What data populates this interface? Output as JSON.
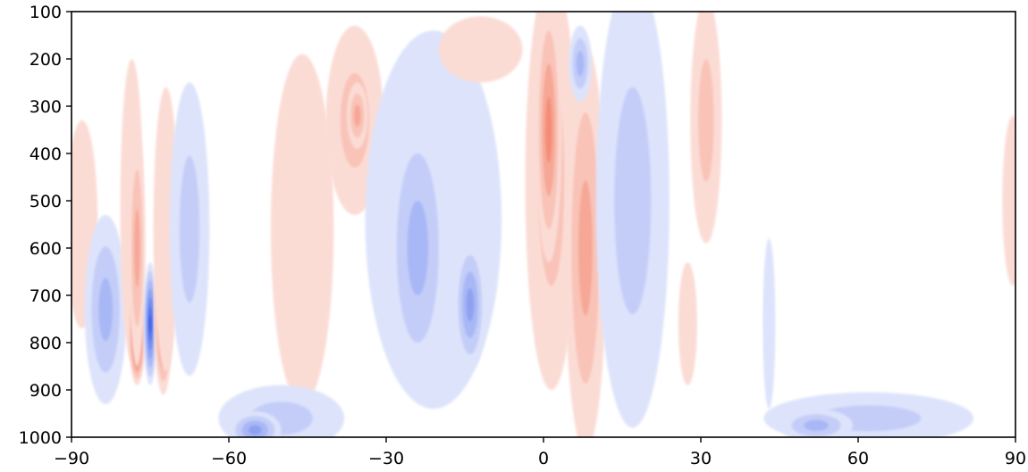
{
  "chart_data": {
    "type": "heatmap",
    "title": "",
    "xlabel": "",
    "ylabel": "",
    "xlim": [
      -90,
      90
    ],
    "ylim": [
      1000,
      100
    ],
    "y_inverted": true,
    "grid": false,
    "colormap": "diverging blue-white-red",
    "colors": {
      "neg": [
        "#dde3fb",
        "#c3cdf8",
        "#a8b7f5",
        "#8ea1f1",
        "#7189ef",
        "#5472ec",
        "#3258e8",
        "#0b3ce6"
      ],
      "pos": [
        "#fbdcd5",
        "#f9c3b8",
        "#f6a795",
        "#f48c75",
        "#f27358",
        "#ef5a3e",
        "#ed4124",
        "#ea2a0c"
      ]
    },
    "x_ticks": [
      {
        "value": -90,
        "label": "−90"
      },
      {
        "value": -60,
        "label": "−60"
      },
      {
        "value": -30,
        "label": "−30"
      },
      {
        "value": 0,
        "label": "0"
      },
      {
        "value": 30,
        "label": "30"
      },
      {
        "value": 60,
        "label": "60"
      },
      {
        "value": 90,
        "label": "90"
      }
    ],
    "y_ticks": [
      {
        "value": 100,
        "label": "100"
      },
      {
        "value": 200,
        "label": "200"
      },
      {
        "value": 300,
        "label": "300"
      },
      {
        "value": 400,
        "label": "400"
      },
      {
        "value": 500,
        "label": "500"
      },
      {
        "value": 600,
        "label": "600"
      },
      {
        "value": 700,
        "label": "700"
      },
      {
        "value": 800,
        "label": "800"
      },
      {
        "value": 900,
        "label": "900"
      },
      {
        "value": 1000,
        "label": "1000"
      }
    ],
    "features": [
      {
        "name": "anomaly-pos-lat-minus-88",
        "lat": -88.5,
        "p": 600,
        "dlat": 2.0,
        "dp": 130,
        "level": 6
      },
      {
        "name": "anomaly-pos-lat-minus-88-halo",
        "lat": -88.0,
        "p": 550,
        "dlat": 3.0,
        "dp": 220,
        "level": 1
      },
      {
        "name": "anomaly-neg-lat-minus-84",
        "lat": -84.0,
        "p": 770,
        "dlat": 2.6,
        "dp": 130,
        "level": 8
      },
      {
        "name": "anomaly-neg-lat-minus-84-halo",
        "lat": -83.5,
        "p": 730,
        "dlat": 4.0,
        "dp": 200,
        "level": 3
      },
      {
        "name": "anomaly-pos-lat-minus-78",
        "lat": -78.5,
        "p": 520,
        "dlat": 2.2,
        "dp": 320,
        "level": 1
      },
      {
        "name": "anomaly-pos-lat-minus-77",
        "lat": -77.5,
        "p": 780,
        "dlat": 1.6,
        "dp": 110,
        "level": 8
      },
      {
        "name": "anomaly-pos-lat-minus-77-mid",
        "lat": -77.5,
        "p": 600,
        "dlat": 1.6,
        "dp": 250,
        "level": 3
      },
      {
        "name": "anomaly-neg-lat-minus-75",
        "lat": -75.0,
        "p": 760,
        "dlat": 1.3,
        "dp": 130,
        "level": 7
      },
      {
        "name": "anomaly-pos-lat-minus-73",
        "lat": -72.5,
        "p": 740,
        "dlat": 1.8,
        "dp": 170,
        "level": 6
      },
      {
        "name": "anomaly-pos-lat-minus-73-halo",
        "lat": -72.0,
        "p": 560,
        "dlat": 2.4,
        "dp": 300,
        "level": 1
      },
      {
        "name": "anomaly-neg-lat-minus-68",
        "lat": -67.5,
        "p": 700,
        "dlat": 2.4,
        "dp": 150,
        "level": 6
      },
      {
        "name": "anomaly-neg-lat-minus-68-halo",
        "lat": -67.5,
        "p": 560,
        "dlat": 3.8,
        "dp": 310,
        "level": 2
      },
      {
        "name": "anomaly-pos-lat-minus-46",
        "lat": -46.0,
        "p": 560,
        "dlat": 6.0,
        "dp": 370,
        "level": 1
      },
      {
        "name": "anomaly-pos-lat-minus-36",
        "lat": -36.0,
        "p": 330,
        "dlat": 5.5,
        "dp": 200,
        "level": 2
      },
      {
        "name": "anomaly-pos-lat-minus-36-core",
        "lat": -35.5,
        "p": 320,
        "dlat": 2.0,
        "dp": 70,
        "level": 3
      },
      {
        "name": "anomaly-neg-lat-minus-58-surface",
        "lat": -50.0,
        "p": 960,
        "dlat": 12.0,
        "dp": 70,
        "level": 2
      },
      {
        "name": "anomaly-neg-lat-minus-58-surface-core",
        "lat": -55.0,
        "p": 985,
        "dlat": 5.0,
        "dp": 40,
        "level": 4
      },
      {
        "name": "anomaly-neg-lat-minus-22",
        "lat": -21.0,
        "p": 540,
        "dlat": 13.0,
        "dp": 400,
        "level": 1
      },
      {
        "name": "anomaly-neg-lat-minus-24",
        "lat": -24.0,
        "p": 600,
        "dlat": 6.0,
        "dp": 300,
        "level": 3
      },
      {
        "name": "anomaly-neg-lat-minus-14",
        "lat": -14.0,
        "p": 720,
        "dlat": 3.0,
        "dp": 140,
        "level": 4
      },
      {
        "name": "anomaly-pos-lat-minus-10-upper",
        "lat": -12.0,
        "p": 180,
        "dlat": 8.0,
        "dp": 70,
        "level": 1
      },
      {
        "name": "anomaly-pos-lat-2",
        "lat": 1.5,
        "p": 460,
        "dlat": 5.0,
        "dp": 440,
        "level": 2
      },
      {
        "name": "anomaly-pos-lat-2-core",
        "lat": 1.0,
        "p": 350,
        "dlat": 2.5,
        "dp": 280,
        "level": 4
      },
      {
        "name": "anomaly-pos-lat-8",
        "lat": 8.0,
        "p": 780,
        "dlat": 2.6,
        "dp": 220,
        "level": 7
      },
      {
        "name": "anomaly-pos-lat-8-halo",
        "lat": 8.0,
        "p": 600,
        "dlat": 4.0,
        "dp": 430,
        "level": 3
      },
      {
        "name": "anomaly-neg-lat-7-upper",
        "lat": 7.0,
        "p": 210,
        "dlat": 2.2,
        "dp": 80,
        "level": 3
      },
      {
        "name": "anomaly-neg-lat-18",
        "lat": 18.0,
        "p": 450,
        "dlat": 3.2,
        "dp": 420,
        "level": 5
      },
      {
        "name": "anomaly-neg-lat-18-halo",
        "lat": 17.0,
        "p": 500,
        "dlat": 7.0,
        "dp": 480,
        "level": 2
      },
      {
        "name": "anomaly-pos-lat-31",
        "lat": 31.0,
        "p": 330,
        "dlat": 3.0,
        "dp": 260,
        "level": 2
      },
      {
        "name": "anomaly-pos-lat-28-low",
        "lat": 27.5,
        "p": 760,
        "dlat": 1.8,
        "dp": 130,
        "level": 1
      },
      {
        "name": "anomaly-neg-lat-43",
        "lat": 43.0,
        "p": 760,
        "dlat": 1.2,
        "dp": 180,
        "level": 1
      },
      {
        "name": "anomaly-neg-lat-60-surface",
        "lat": 62.0,
        "p": 960,
        "dlat": 20.0,
        "dp": 55,
        "level": 2
      },
      {
        "name": "anomaly-neg-lat-50-surface-core",
        "lat": 52.0,
        "p": 975,
        "dlat": 7.0,
        "dp": 35,
        "level": 3
      },
      {
        "name": "anomaly-pos-lat-89",
        "lat": 89.5,
        "p": 500,
        "dlat": 2.0,
        "dp": 180,
        "level": 1
      }
    ]
  }
}
